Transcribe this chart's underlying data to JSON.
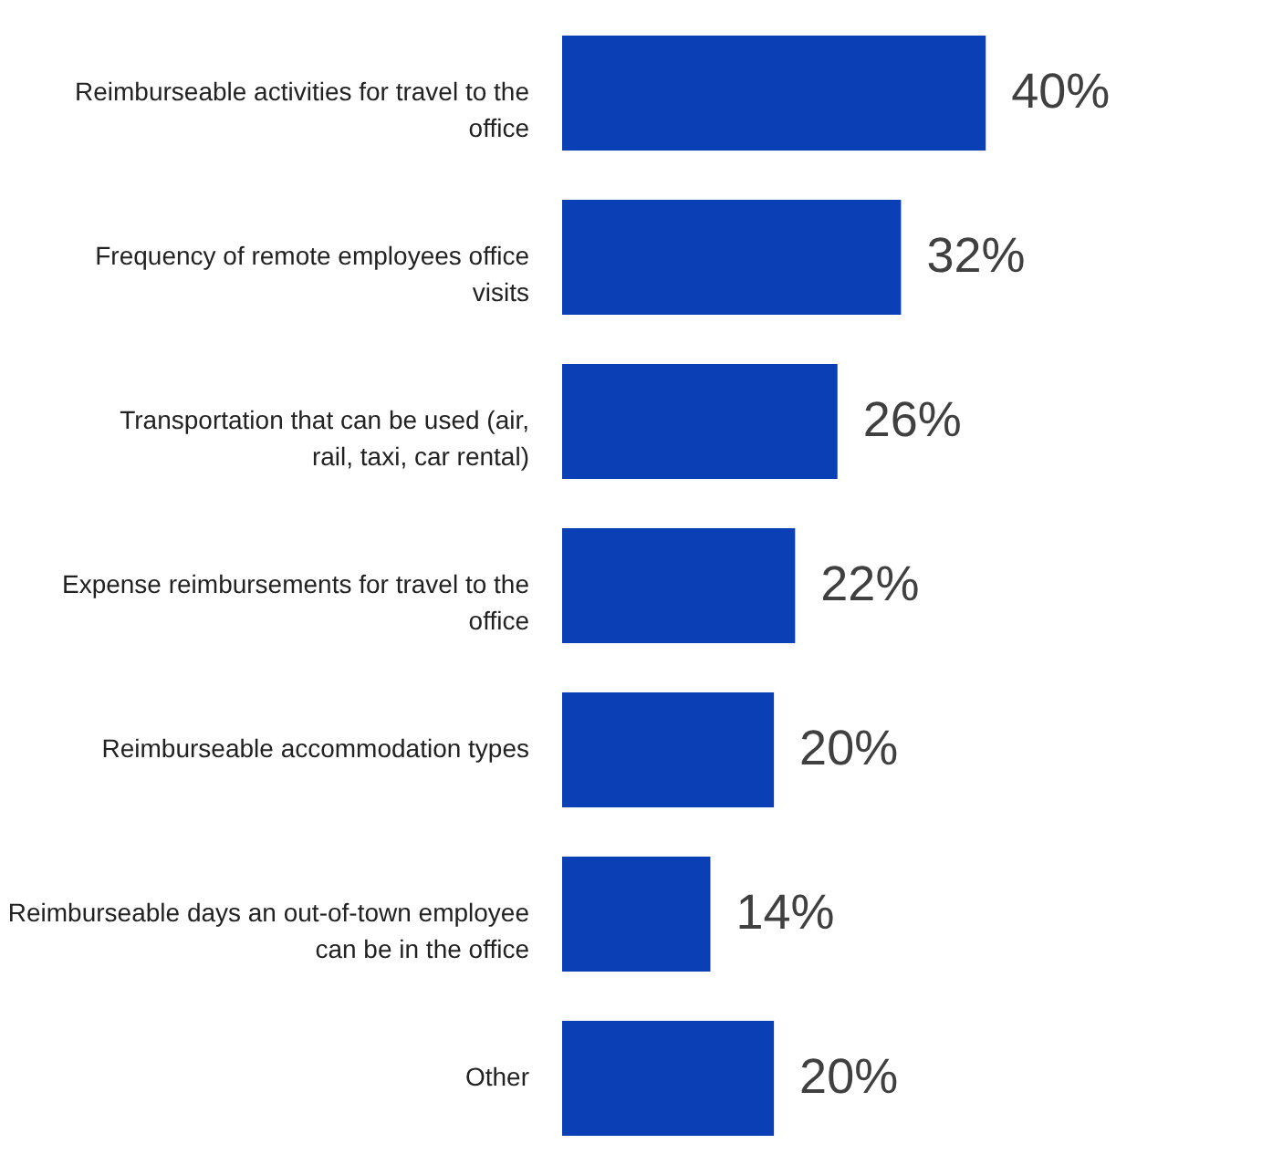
{
  "chart_data": {
    "type": "bar",
    "orientation": "horizontal",
    "categories": [
      "Reimburseable activities for travel to the office",
      "Frequency of remote employees office visits",
      "Transportation that can be used (air, rail, taxi, car rental)",
      "Expense reimbursements for travel to the office",
      "Reimburseable accommodation types",
      "Reimburseable days an out-of-town employee can be in the office",
      "Other"
    ],
    "values": [
      40,
      32,
      26,
      22,
      20,
      14,
      20
    ],
    "value_labels": [
      "40%",
      "32%",
      "26%",
      "22%",
      "20%",
      "14%",
      "20%"
    ],
    "color": "#0b3fb5"
  }
}
